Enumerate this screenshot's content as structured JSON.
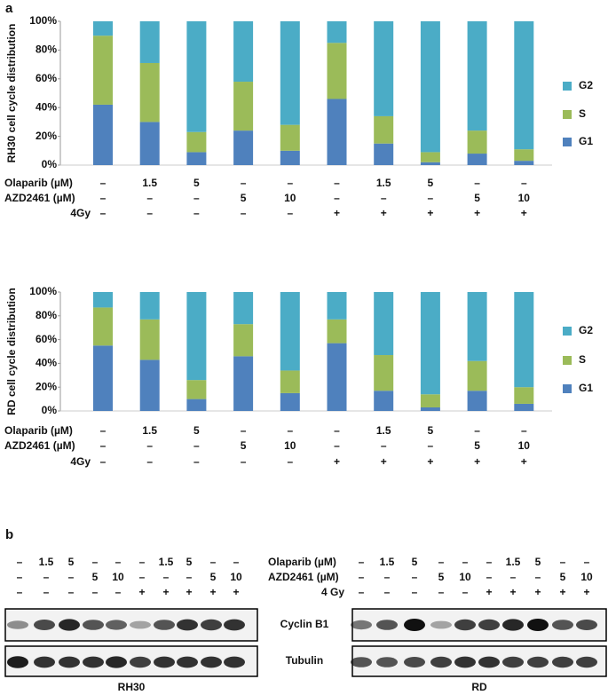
{
  "panel_labels": [
    "a",
    "b"
  ],
  "chart_data": [
    {
      "type": "stacked_bar",
      "ylabel": "RH30 cell cycle distribution",
      "ylim": [
        0,
        100
      ],
      "yticks": [
        {
          "value": 0,
          "label": "0%"
        },
        {
          "value": 20,
          "label": "20%"
        },
        {
          "value": 40,
          "label": "40%"
        },
        {
          "value": 60,
          "label": "60%"
        },
        {
          "value": 80,
          "label": "80%"
        },
        {
          "value": 100,
          "label": "100%"
        }
      ],
      "series": [
        {
          "name": "G1",
          "color": "#4f81bd",
          "values": [
            42,
            30,
            9,
            24,
            10,
            46,
            15,
            2,
            8,
            3
          ]
        },
        {
          "name": "S",
          "color": "#9bbb59",
          "values": [
            48,
            41,
            14,
            34,
            18,
            39,
            19,
            7,
            16,
            8
          ]
        },
        {
          "name": "G2",
          "color": "#4bacc6",
          "values": [
            10,
            29,
            77,
            42,
            72,
            15,
            66,
            91,
            76,
            89
          ]
        }
      ],
      "treatments": [
        {
          "label": "Olaparib (µM)",
          "values": [
            "–",
            "1.5",
            "5",
            "–",
            "–",
            "–",
            "1.5",
            "5",
            "–",
            "–"
          ]
        },
        {
          "label": "AZD2461 (µM)",
          "values": [
            "–",
            "–",
            "–",
            "5",
            "10",
            "–",
            "–",
            "–",
            "5",
            "10"
          ]
        },
        {
          "label": "4Gy",
          "values": [
            "–",
            "–",
            "–",
            "–",
            "–",
            "+",
            "+",
            "+",
            "+",
            "+"
          ]
        }
      ]
    },
    {
      "type": "stacked_bar",
      "ylabel": "RD cell cycle distribution",
      "ylim": [
        0,
        100
      ],
      "yticks": [
        {
          "value": 0,
          "label": "0%"
        },
        {
          "value": 20,
          "label": "20%"
        },
        {
          "value": 40,
          "label": "40%"
        },
        {
          "value": 60,
          "label": "60%"
        },
        {
          "value": 80,
          "label": "80%"
        },
        {
          "value": 100,
          "label": "100%"
        }
      ],
      "series": [
        {
          "name": "G1",
          "color": "#4f81bd",
          "values": [
            55,
            43,
            10,
            46,
            15,
            57,
            17,
            3,
            17,
            6
          ]
        },
        {
          "name": "S",
          "color": "#9bbb59",
          "values": [
            32,
            34,
            16,
            27,
            19,
            20,
            30,
            11,
            25,
            14
          ]
        },
        {
          "name": "G2",
          "color": "#4bacc6",
          "values": [
            13,
            23,
            74,
            27,
            66,
            23,
            53,
            86,
            58,
            80
          ]
        }
      ],
      "treatments": [
        {
          "label": "Olaparib (µM)",
          "values": [
            "–",
            "1.5",
            "5",
            "–",
            "–",
            "–",
            "1.5",
            "5",
            "–",
            "–"
          ]
        },
        {
          "label": "AZD2461 (µM)",
          "values": [
            "–",
            "–",
            "–",
            "5",
            "10",
            "–",
            "–",
            "–",
            "5",
            "10"
          ]
        },
        {
          "label": "4Gy",
          "values": [
            "–",
            "–",
            "–",
            "–",
            "–",
            "+",
            "+",
            "+",
            "+",
            "+"
          ]
        }
      ]
    }
  ],
  "blot": {
    "treatment_labels": [
      "Olaparib (µM)",
      "AZD2461 (µM)",
      "4 Gy"
    ],
    "treatments": [
      [
        "–",
        "1.5",
        "5",
        "–",
        "–",
        "–",
        "1.5",
        "5",
        "–",
        "–"
      ],
      [
        "–",
        "–",
        "–",
        "5",
        "10",
        "–",
        "–",
        "–",
        "5",
        "10"
      ],
      [
        "–",
        "–",
        "–",
        "–",
        "–",
        "+",
        "+",
        "+",
        "+",
        "+"
      ]
    ],
    "bands": [
      "Cyclin B1",
      "Tubulin"
    ],
    "cell_lines": [
      "RH30",
      "RD"
    ]
  }
}
